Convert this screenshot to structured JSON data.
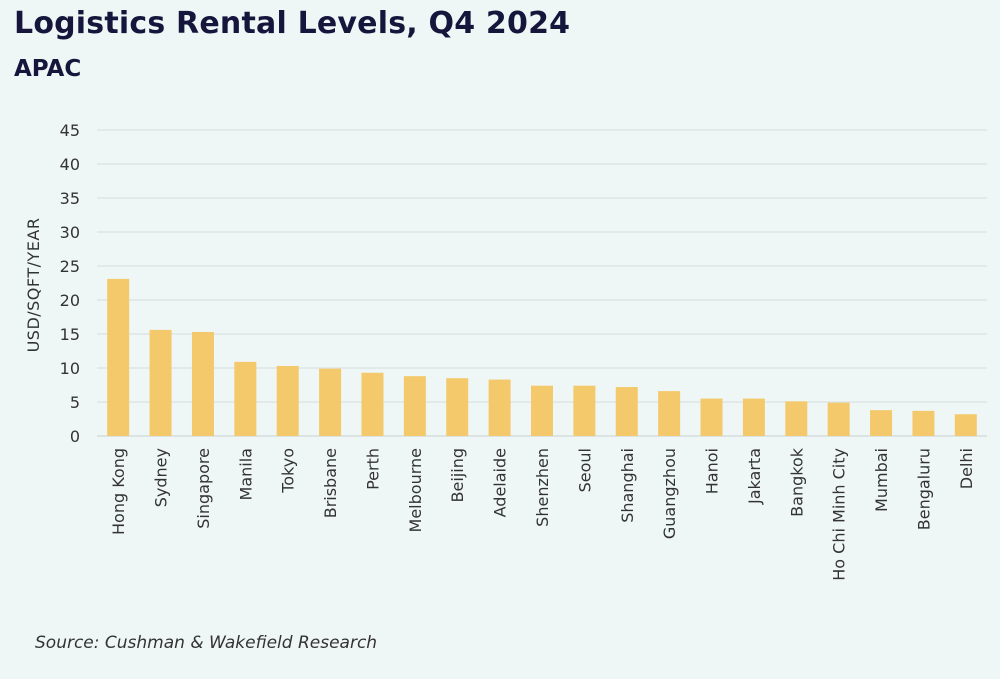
{
  "header": {
    "title": "Logistics Rental Levels, Q4 2024",
    "subtitle": "APAC"
  },
  "footer": {
    "source": "Source: Cushman & Wakefield Research"
  },
  "colors": {
    "bar": "#f3c96c",
    "grid": "#d6dcdc",
    "text": "#333333",
    "title": "#16163c",
    "background": "#eff6f6"
  },
  "chart_data": {
    "type": "bar",
    "title": "Logistics Rental Levels, Q4 2024",
    "subtitle": "APAC",
    "xlabel": "",
    "ylabel": "USD/SQFT/YEAR",
    "ylim": [
      0,
      45
    ],
    "yticks": [
      0,
      5,
      10,
      15,
      20,
      25,
      30,
      35,
      40,
      45
    ],
    "grid": true,
    "legend": "none",
    "categories": [
      "Hong Kong",
      "Sydney",
      "Singapore",
      "Manila",
      "Tokyo",
      "Brisbane",
      "Perth",
      "Melbourne",
      "Beijing",
      "Adelaide",
      "Shenzhen",
      "Seoul",
      "Shanghai",
      "Guangzhou",
      "Hanoi",
      "Jakarta",
      "Bangkok",
      "Ho Chi Minh City",
      "Mumbai",
      "Bengaluru",
      "Delhi"
    ],
    "values": [
      23.1,
      15.6,
      15.3,
      10.9,
      10.3,
      9.9,
      9.3,
      8.8,
      8.5,
      8.3,
      7.4,
      7.4,
      7.2,
      6.6,
      5.5,
      5.5,
      5.1,
      4.9,
      3.8,
      3.7,
      3.2
    ]
  }
}
